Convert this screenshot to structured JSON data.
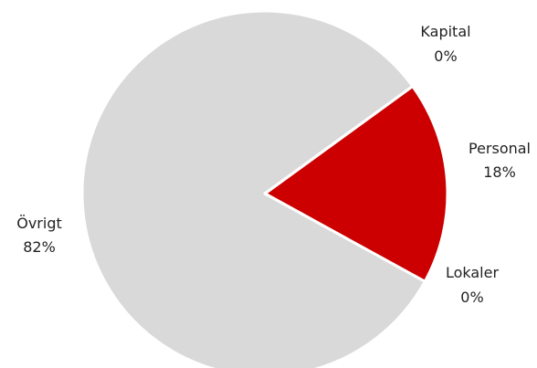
{
  "chart_data": {
    "type": "pie",
    "slices": [
      {
        "label": "Personal",
        "value": 18,
        "value_label": "18%",
        "color": "#cc0000"
      },
      {
        "label": "Lokaler",
        "value": 0,
        "value_label": "0%",
        "color": "#cc0000"
      },
      {
        "label": "Övrigt",
        "value": 82,
        "value_label": "82%",
        "color": "#d9d9d9"
      },
      {
        "label": "Kapital",
        "value": 0,
        "value_label": "0%",
        "color": "#d9d9d9"
      }
    ]
  }
}
